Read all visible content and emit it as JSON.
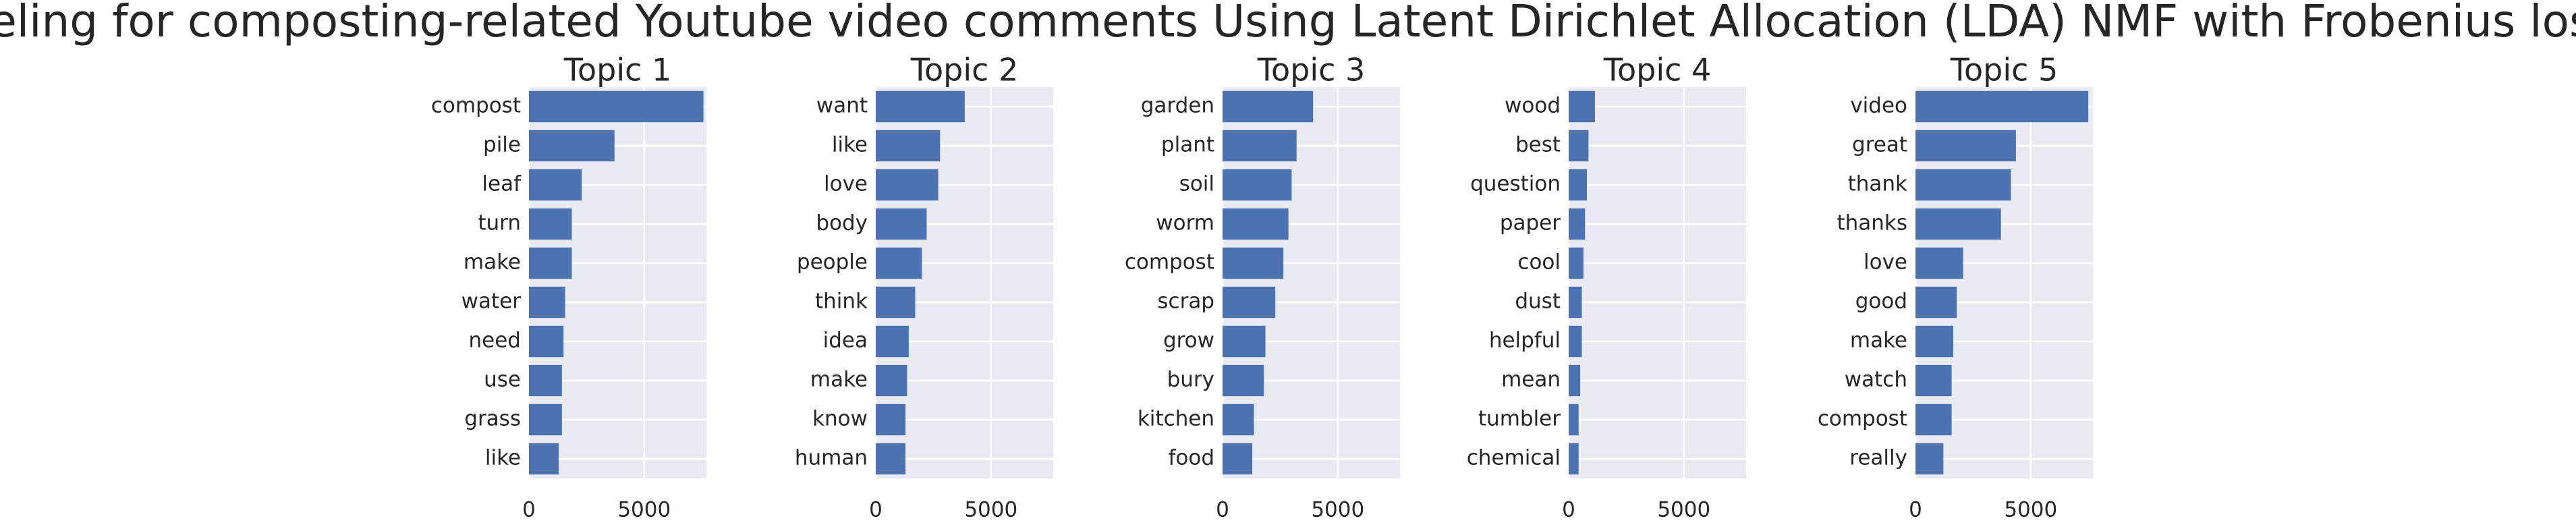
{
  "title": "Topic modeling for composting-related Youtube video comments Using Latent Dirichlet Allocation (LDA) NMF with Frobenius loss function",
  "chart_data": [
    {
      "type": "barh",
      "title": "Topic 1",
      "color": "#4c72b0",
      "grid": true,
      "xlim": [
        0,
        7700
      ],
      "xticks": [
        0,
        5000
      ],
      "categories": [
        "compost",
        "pile",
        "leaf",
        "turn",
        "make",
        "water",
        "need",
        "use",
        "grass",
        "like"
      ],
      "values": [
        7570,
        3710,
        2290,
        1860,
        1860,
        1570,
        1500,
        1430,
        1430,
        1290
      ]
    },
    {
      "type": "barh",
      "title": "Topic 2",
      "color": "#4c72b0",
      "grid": true,
      "xlim": [
        0,
        7700
      ],
      "xticks": [
        0,
        5000
      ],
      "categories": [
        "want",
        "like",
        "love",
        "body",
        "people",
        "think",
        "idea",
        "make",
        "know",
        "human"
      ],
      "values": [
        3860,
        2790,
        2710,
        2210,
        2000,
        1710,
        1430,
        1360,
        1290,
        1290
      ]
    },
    {
      "type": "barh",
      "title": "Topic 3",
      "color": "#4c72b0",
      "grid": true,
      "xlim": [
        0,
        7700
      ],
      "xticks": [
        0,
        5000
      ],
      "categories": [
        "garden",
        "plant",
        "soil",
        "worm",
        "compost",
        "scrap",
        "grow",
        "bury",
        "kitchen",
        "food"
      ],
      "values": [
        3930,
        3210,
        3000,
        2860,
        2640,
        2290,
        1860,
        1790,
        1360,
        1290
      ]
    },
    {
      "type": "barh",
      "title": "Topic 4",
      "color": "#4c72b0",
      "grid": true,
      "xlim": [
        0,
        7700
      ],
      "xticks": [
        0,
        5000
      ],
      "categories": [
        "wood",
        "best",
        "question",
        "paper",
        "cool",
        "dust",
        "helpful",
        "mean",
        "tumbler",
        "chemical"
      ],
      "values": [
        1140,
        860,
        790,
        710,
        640,
        570,
        570,
        500,
        430,
        430
      ]
    },
    {
      "type": "barh",
      "title": "Topic 5",
      "color": "#4c72b0",
      "grid": true,
      "xlim": [
        0,
        7700
      ],
      "xticks": [
        0,
        5000
      ],
      "categories": [
        "video",
        "great",
        "thank",
        "thanks",
        "love",
        "good",
        "make",
        "watch",
        "compost",
        "really"
      ],
      "values": [
        7500,
        4360,
        4140,
        3710,
        2070,
        1790,
        1640,
        1570,
        1570,
        1210
      ]
    }
  ]
}
